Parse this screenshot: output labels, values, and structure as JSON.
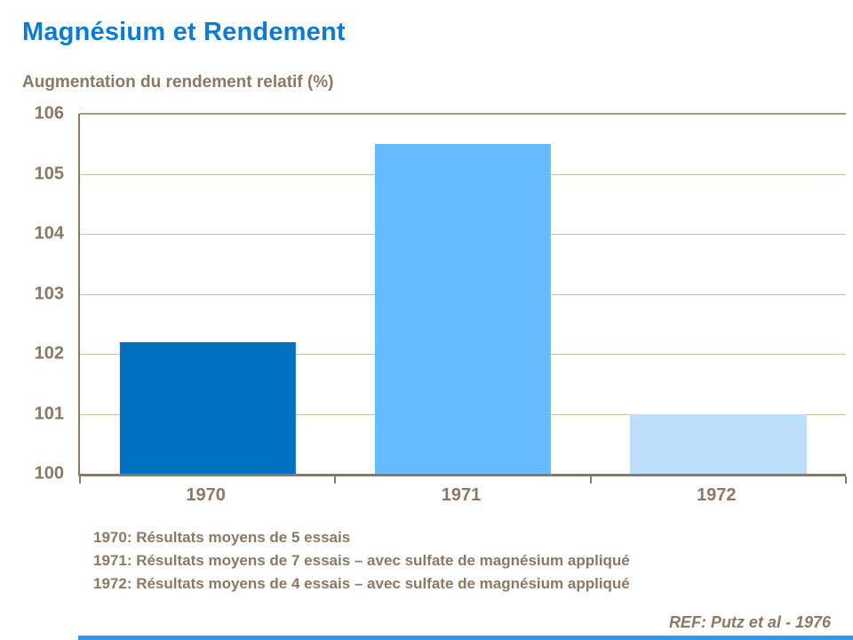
{
  "header": {
    "title": "Magnésium et Rendement",
    "subtitle": "Augmentation du rendement relatif (%)"
  },
  "chart_data": {
    "type": "bar",
    "categories": [
      "1970",
      "1971",
      "1972"
    ],
    "values": [
      102.2,
      105.5,
      101.0
    ],
    "bar_colors": [
      "#0070C0",
      "#66BCFF",
      "#BDDFFC"
    ],
    "title": "Augmentation du rendement relatif (%)",
    "xlabel": "",
    "ylabel": "",
    "ylim": [
      100,
      106
    ],
    "yticks": [
      100,
      101,
      102,
      103,
      104,
      105,
      106
    ],
    "grid": true,
    "legend": false
  },
  "footnotes": [
    "1970: Résultats moyens de 5 essais",
    "1971: Résultats moyens de 7 essais – avec sulfate de magnésium appliqué",
    "1972: Résultats moyens de 4 essais – avec sulfate de magnésium appliqué"
  ],
  "footer": {
    "reference": "REF: Putz et al - 1976"
  },
  "colors": {
    "title_blue": "#0B7CD1",
    "text_brown": "#8A7963",
    "gridline": "#CBBFAA",
    "axis": "#8A7963",
    "accent_bar": "#3399E6"
  }
}
